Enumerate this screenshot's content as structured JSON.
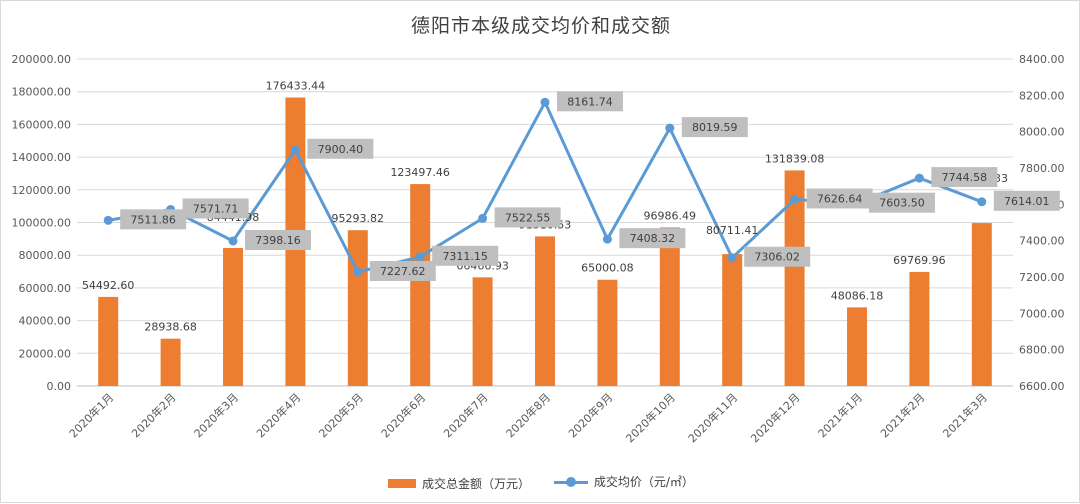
{
  "chart_data": {
    "type": "bar",
    "title": "德阳市本级成交均价和成交额",
    "categories": [
      "2020年1月",
      "2020年2月",
      "2020年3月",
      "2020年4月",
      "2020年5月",
      "2020年6月",
      "2020年7月",
      "2020年8月",
      "2020年9月",
      "2020年10月",
      "2020年11月",
      "2020年12月",
      "2021年1月",
      "2021年2月",
      "2021年3月"
    ],
    "series": [
      {
        "name": "成交总金额（万元）",
        "type": "bar",
        "axis": "left",
        "color": "#ed7d31",
        "values": [
          54492.6,
          28938.68,
          84441.98,
          176433.44,
          95293.82,
          123497.46,
          66466.93,
          91510.53,
          65000.08,
          96986.49,
          80711.41,
          131839.08,
          48086.18,
          69769.96,
          99658.33
        ],
        "labels": [
          "54492.60",
          "28938.68",
          "84441.98",
          "176433.44",
          "95293.82",
          "123497.46",
          "66466.93",
          "91510.53",
          "65000.08",
          "96986.49",
          "80711.41",
          "131839.08",
          "48086.18",
          "69769.96",
          "99658.33"
        ]
      },
      {
        "name": "成交均价（元/㎡）",
        "type": "line",
        "axis": "right",
        "color": "#5b9bd5",
        "values": [
          7511.86,
          7571.71,
          7398.16,
          7900.4,
          7227.62,
          7311.15,
          7522.55,
          8161.74,
          7408.32,
          8019.59,
          7306.02,
          7626.64,
          7603.5,
          7744.58,
          7614.01
        ],
        "labels": [
          "7511.86",
          "7571.71",
          "7398.16",
          "7900.40",
          "7227.62",
          "7311.15",
          "7522.55",
          "8161.74",
          "7408.32",
          "8019.59",
          "7306.02",
          "7626.64",
          "7603.50",
          "7744.58",
          "7614.01"
        ]
      }
    ],
    "y_left": {
      "lim": [
        0,
        200000
      ],
      "ticks": [
        "0.00",
        "20000.00",
        "40000.00",
        "60000.00",
        "80000.00",
        "100000.00",
        "120000.00",
        "140000.00",
        "160000.00",
        "180000.00",
        "200000.00"
      ]
    },
    "y_right": {
      "lim": [
        6600,
        8400
      ],
      "ticks": [
        "6600.00",
        "6800.00",
        "7000.00",
        "7200.00",
        "7400.00",
        "7600.00",
        "7800.00",
        "8000.00",
        "8200.00",
        "8400.00"
      ]
    },
    "grid": true,
    "legend": "bottom"
  }
}
